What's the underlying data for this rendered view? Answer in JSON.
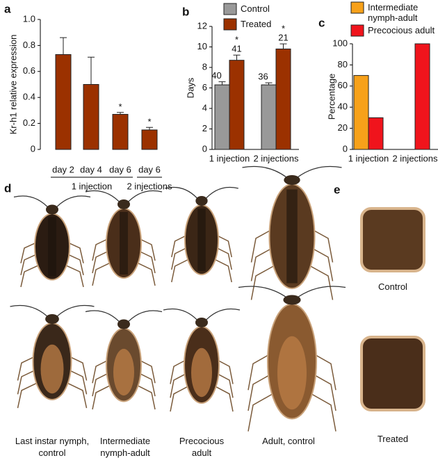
{
  "chart_data": [
    {
      "type": "bar",
      "panel": "a",
      "y_label": "Kr-h1 relative expression",
      "categories": [
        "day 2",
        "day 4",
        "day 6",
        "day 6"
      ],
      "values": [
        0.73,
        0.5,
        0.27,
        0.15
      ],
      "errors": [
        0.13,
        0.21,
        0.015,
        0.02
      ],
      "significance": [
        null,
        null,
        "*",
        "*"
      ],
      "color": "#9b3100",
      "groups": [
        {
          "label": "1 injection",
          "size": 3
        },
        {
          "label": "2 injections",
          "size": 1
        }
      ],
      "ylim": [
        0,
        1
      ],
      "yticks": [
        0,
        0.2,
        0.4,
        0.6,
        0.8,
        {
          "value": 1,
          "label": "1.0"
        }
      ]
    },
    {
      "type": "bar",
      "panel": "b",
      "y_label": "Days",
      "categories": [
        "1 injection",
        "2 injections"
      ],
      "series": [
        {
          "name": "Control",
          "color": "#999999",
          "values": [
            6.3,
            6.3
          ],
          "errors": [
            0.3,
            0.2
          ],
          "n": [
            40,
            36
          ]
        },
        {
          "name": "Treated",
          "color": "#9b3100",
          "values": [
            8.7,
            9.8
          ],
          "errors": [
            0.5,
            0.5
          ],
          "n": [
            41,
            21
          ],
          "significance": [
            "*",
            "*"
          ]
        }
      ],
      "ylim": [
        0,
        12
      ],
      "yticks": [
        0,
        2,
        4,
        6,
        8,
        10,
        12
      ]
    },
    {
      "type": "bar",
      "panel": "c",
      "y_label": "Percentage",
      "categories": [
        "1 injection",
        "2 injections"
      ],
      "series": [
        {
          "name": "Intermediate nymph-adult",
          "color": "#f7a11a",
          "values": [
            70,
            0
          ]
        },
        {
          "name": "Precocious adult",
          "color": "#f0141c",
          "values": [
            30,
            100
          ]
        }
      ],
      "ylim": [
        0,
        100
      ],
      "yticks": [
        0,
        20,
        40,
        60,
        80,
        100
      ]
    }
  ],
  "photos": {
    "panel_d": "d",
    "panel_e": "e",
    "d_captions": [
      "Last instar nymph, control",
      "Intermediate nymph-adult",
      "Precocious adult",
      "Adult, control"
    ],
    "e_captions": [
      "Control",
      "Treated"
    ]
  }
}
